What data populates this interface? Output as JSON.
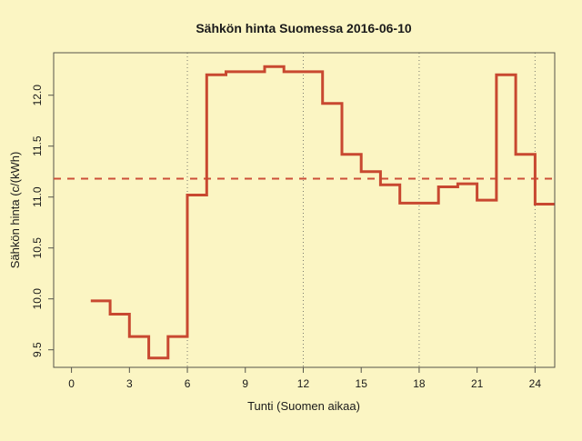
{
  "chart_data": {
    "type": "line",
    "style": "step",
    "title": "Sähkön hinta Suomessa 2016-06-10",
    "xlabel": "Tunti (Suomen aikaa)",
    "ylabel": "Sähkön hinta (c/(kWh)",
    "x_ticks": [
      0,
      3,
      6,
      9,
      12,
      15,
      18,
      21,
      24
    ],
    "y_ticks": [
      9.5,
      10.0,
      10.5,
      11.0,
      11.5,
      12.0
    ],
    "xlim": [
      -0.9,
      25.0
    ],
    "ylim": [
      9.33,
      12.42
    ],
    "grid_x": [
      6,
      12,
      18,
      24
    ],
    "grid_style": "dotted-vertical-only",
    "x_start_hour": 1,
    "hours": [
      1,
      2,
      3,
      4,
      5,
      6,
      7,
      8,
      9,
      10,
      11,
      12,
      13,
      14,
      15,
      16,
      17,
      18,
      19,
      20,
      21,
      22,
      23,
      24
    ],
    "values": [
      9.98,
      9.85,
      9.63,
      9.42,
      9.63,
      11.02,
      12.2,
      12.23,
      12.23,
      12.28,
      12.23,
      12.23,
      11.92,
      11.42,
      11.25,
      11.12,
      10.94,
      10.94,
      11.1,
      11.13,
      10.97,
      12.2,
      11.42,
      10.93
    ],
    "average_line": 11.18,
    "legend": "none",
    "colors": {
      "background": "#FBF5C3",
      "series_line": "#C84830",
      "average_dash": "#CC4F38",
      "box_and_ticks": "#55544A",
      "grid_dots": "#7A7A6E",
      "text": "#1A1A1A"
    }
  }
}
